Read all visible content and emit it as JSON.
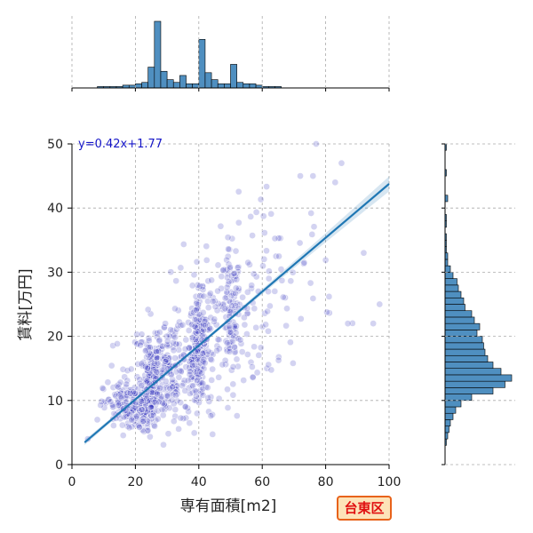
{
  "chart_data": {
    "type": "scatter",
    "xlabel": "専有面積[m2]",
    "ylabel": "賃料[万円]",
    "xlim": [
      0,
      100
    ],
    "ylim": [
      0,
      50
    ],
    "x_ticks": [
      "0",
      "20",
      "40",
      "60",
      "80",
      "100"
    ],
    "y_ticks": [
      "0",
      "10",
      "20",
      "30",
      "40",
      "50"
    ],
    "grid": true,
    "regression": {
      "equation": "y=0.42x+1.77",
      "slope": 0.42,
      "intercept": 1.77,
      "x_range": [
        4,
        100
      ],
      "color": "#1f77b4"
    },
    "points_color": "#3535c0",
    "clusters": [
      {
        "x": 25,
        "y_mean": 12.2,
        "y_sd": 3.0,
        "x_sd": 1.2,
        "n": 190
      },
      {
        "x": 40,
        "y_mean": 18.5,
        "y_sd": 4.0,
        "x_sd": 1.4,
        "n": 190
      },
      {
        "x": 50,
        "y_mean": 23.0,
        "y_sd": 5.0,
        "x_sd": 1.6,
        "n": 70
      },
      {
        "x": 30,
        "y_mean": 14.5,
        "y_sd": 4.0,
        "x_sd": 6.0,
        "n": 280
      },
      {
        "x": 18,
        "y_mean": 9.0,
        "y_sd": 2.0,
        "x_sd": 4.0,
        "n": 180
      },
      {
        "x": 48,
        "y_mean": 22.0,
        "y_sd": 5.5,
        "x_sd": 8.0,
        "n": 150
      },
      {
        "x": 65,
        "y_mean": 29.0,
        "y_sd": 6.5,
        "x_sd": 9.0,
        "n": 60
      }
    ],
    "outliers": [
      {
        "x": 92,
        "y": 33
      },
      {
        "x": 87,
        "y": 22
      },
      {
        "x": 77,
        "y": 50
      },
      {
        "x": 85,
        "y": 47
      },
      {
        "x": 72,
        "y": 45
      },
      {
        "x": 76,
        "y": 45
      },
      {
        "x": 83,
        "y": 44
      },
      {
        "x": 97,
        "y": 25
      },
      {
        "x": 95,
        "y": 22
      },
      {
        "x": 5,
        "y": 4
      },
      {
        "x": 8,
        "y": 7
      }
    ],
    "top_histogram": {
      "bin_start": 0,
      "bin_width": 2,
      "counts": [
        0,
        0,
        0,
        0,
        1,
        1,
        1,
        1,
        2,
        2,
        3,
        4,
        15,
        48,
        12,
        6,
        4,
        9,
        3,
        3,
        35,
        11,
        6,
        3,
        3,
        17,
        4,
        3,
        3,
        2,
        1,
        1,
        1,
        0,
        0,
        0,
        0,
        0,
        0,
        0,
        0,
        0,
        0,
        0,
        0,
        0,
        0,
        0,
        0,
        0
      ]
    },
    "right_histogram": {
      "bin_start": 0,
      "bin_width": 1,
      "counts": [
        0,
        0,
        0,
        1,
        2,
        3,
        4,
        6,
        8,
        12,
        20,
        36,
        45,
        50,
        42,
        36,
        32,
        30,
        29,
        28,
        24,
        26,
        22,
        20,
        15,
        14,
        12,
        10,
        9,
        6,
        4,
        2,
        2,
        1,
        1,
        1,
        0,
        1,
        1,
        0,
        0,
        2,
        0,
        0,
        0,
        1,
        0,
        0,
        0,
        1
      ]
    },
    "hist_color": "#4f8fc0"
  },
  "badge": {
    "label": "台東区"
  }
}
